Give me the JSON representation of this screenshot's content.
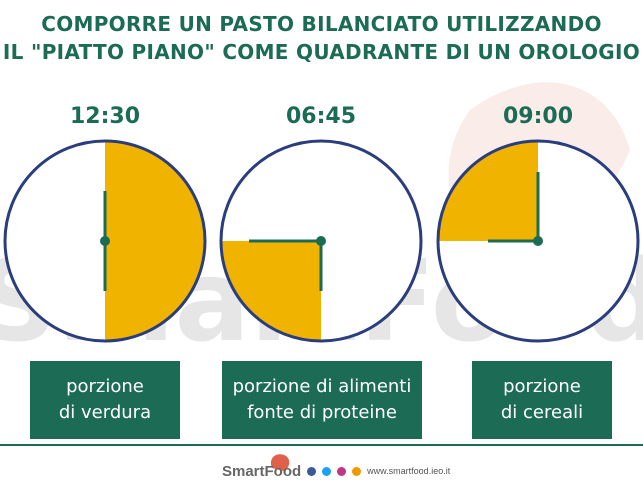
{
  "title": {
    "line1": "COMPORRE UN PASTO BILANCIATO UTILIZZANDO",
    "line2": "IL \"PIATTO PIANO\" COME QUADRANTE DI UN OROLOGIO"
  },
  "clocks": [
    {
      "time": "12:30",
      "portion_fraction": 0.5,
      "label_line1": "porzione",
      "label_line2": "di verdura"
    },
    {
      "time": "06:45",
      "portion_fraction": 0.25,
      "label_line1": "porzione di alimenti",
      "label_line2": "fonte di proteine"
    },
    {
      "time": "09:00",
      "portion_fraction": 0.25,
      "label_line1": "porzione",
      "label_line2": "di cereali"
    }
  ],
  "watermark": "SmartFood",
  "footer": {
    "logo": "SmartFood",
    "url": "www.smartfood.ieo.it"
  },
  "colors": {
    "accent": "#1c6b55",
    "portion": "#f0b400",
    "ring": "#2a3d7d"
  }
}
